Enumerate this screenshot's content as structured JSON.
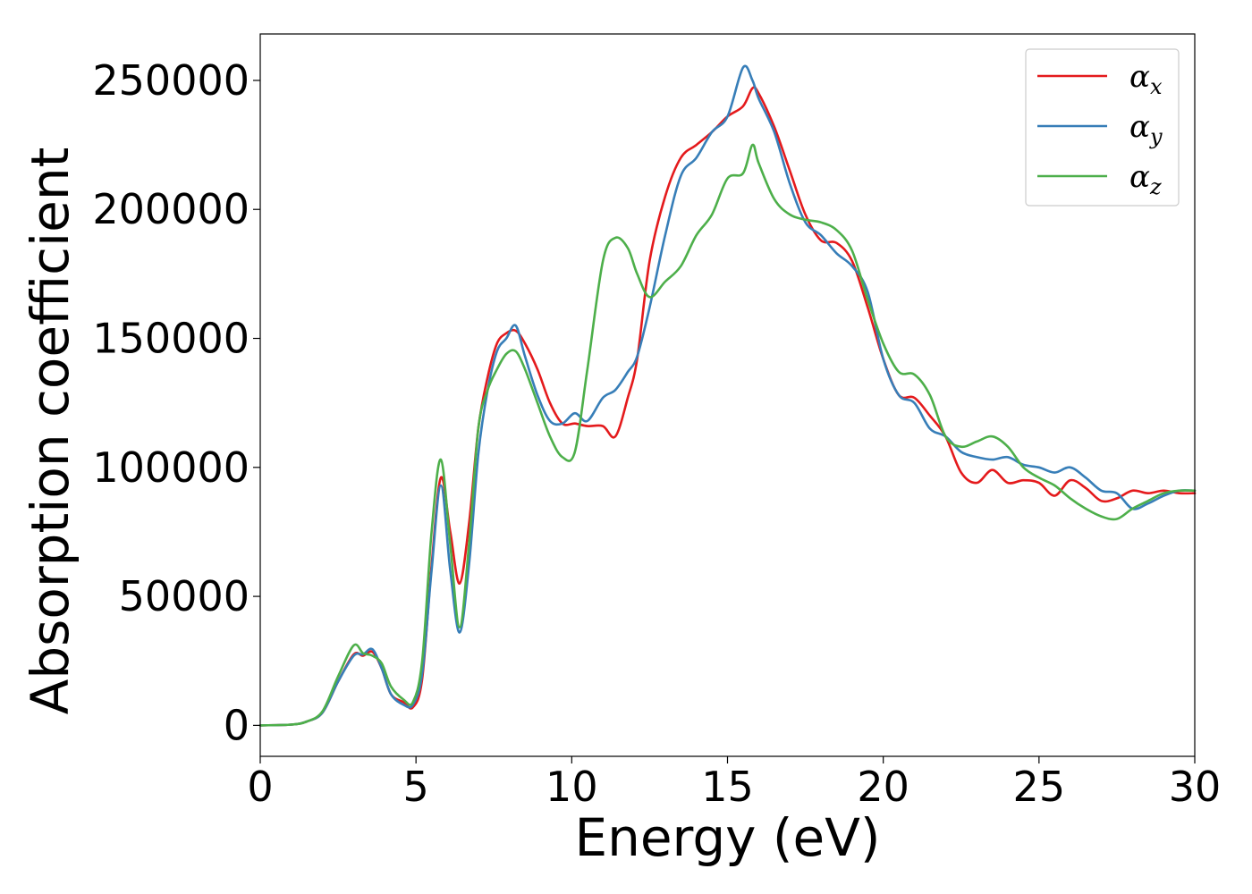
{
  "chart_data": {
    "type": "line",
    "title": "",
    "xlabel": "Energy (eV)",
    "ylabel": "Absorption coefficient",
    "xlim": [
      0,
      30
    ],
    "ylim": [
      -12000,
      268000
    ],
    "xticks": [
      0,
      5,
      10,
      15,
      20,
      25,
      30
    ],
    "yticks": [
      0,
      50000,
      100000,
      150000,
      200000,
      250000
    ],
    "grid": false,
    "legend_position": "top-right",
    "series": [
      {
        "name": "α_x",
        "label_base": "α",
        "label_sub": "x",
        "color": "#e41a1c",
        "x": [
          0,
          1,
          1.5,
          2,
          2.5,
          3,
          3.3,
          3.6,
          3.9,
          4.2,
          4.6,
          4.9,
          5.2,
          5.5,
          5.8,
          6.1,
          6.4,
          6.7,
          7.0,
          7.3,
          7.6,
          7.9,
          8.2,
          8.5,
          8.9,
          9.3,
          9.7,
          10.1,
          10.5,
          11.0,
          11.4,
          11.8,
          12.1,
          12.5,
          13.0,
          13.5,
          14.0,
          14.5,
          15.0,
          15.5,
          15.8,
          16.0,
          16.5,
          17.0,
          17.5,
          18.0,
          18.5,
          19.0,
          19.5,
          20.0,
          20.5,
          21.0,
          21.5,
          22.0,
          22.5,
          23.0,
          23.5,
          24.0,
          24.5,
          25.0,
          25.5,
          26.0,
          26.5,
          27.0,
          27.5,
          28.0,
          28.5,
          29.0,
          29.5,
          30.0
        ],
        "y": [
          0,
          300,
          1500,
          5000,
          17000,
          27500,
          27000,
          28500,
          22000,
          12000,
          9000,
          7000,
          18000,
          62000,
          96000,
          75000,
          55000,
          78000,
          115000,
          135000,
          148000,
          152000,
          153000,
          148000,
          138000,
          125000,
          117000,
          117000,
          116000,
          116000,
          112000,
          127000,
          142000,
          180000,
          205000,
          220000,
          225000,
          230000,
          236000,
          240000,
          247000,
          245000,
          232000,
          215000,
          198000,
          188000,
          187000,
          180000,
          162000,
          142000,
          128000,
          127000,
          120000,
          112000,
          98000,
          94000,
          99000,
          94000,
          95000,
          94000,
          89000,
          95000,
          92000,
          87000,
          88000,
          91000,
          90000,
          91000,
          90000,
          90000
        ]
      },
      {
        "name": "α_y",
        "label_base": "α",
        "label_sub": "y",
        "color": "#377eb8",
        "x": [
          0,
          1,
          1.5,
          2,
          2.5,
          3,
          3.3,
          3.6,
          3.9,
          4.2,
          4.6,
          4.9,
          5.2,
          5.5,
          5.8,
          6.1,
          6.4,
          6.7,
          7.0,
          7.3,
          7.6,
          7.9,
          8.2,
          8.5,
          8.9,
          9.3,
          9.7,
          10.1,
          10.5,
          11.0,
          11.4,
          11.8,
          12.1,
          12.5,
          13.0,
          13.5,
          14.0,
          14.5,
          15.0,
          15.5,
          15.8,
          16.0,
          16.5,
          17.0,
          17.5,
          18.0,
          18.5,
          19.0,
          19.5,
          20.0,
          20.5,
          21.0,
          21.5,
          22.0,
          22.5,
          23.0,
          23.5,
          24.0,
          24.5,
          25.0,
          25.5,
          26.0,
          26.5,
          27.0,
          27.5,
          28.0,
          28.5,
          29.0,
          29.5,
          30.0
        ],
        "y": [
          0,
          300,
          1500,
          5000,
          17000,
          27000,
          27500,
          29500,
          22000,
          12000,
          8000,
          8000,
          20000,
          60000,
          93000,
          60000,
          36000,
          62000,
          105000,
          130000,
          145000,
          150000,
          155000,
          143000,
          128000,
          118000,
          117000,
          121000,
          118000,
          127000,
          130000,
          137000,
          143000,
          162000,
          190000,
          213000,
          220000,
          230000,
          236000,
          255000,
          250000,
          243000,
          230000,
          210000,
          195000,
          190000,
          183000,
          178000,
          168000,
          142000,
          128000,
          125000,
          115000,
          112000,
          106000,
          104000,
          103000,
          104000,
          101000,
          100000,
          98000,
          100000,
          96000,
          91000,
          90000,
          84000,
          86000,
          89000,
          91000,
          91000
        ]
      },
      {
        "name": "α_z",
        "label_base": "α",
        "label_sub": "z",
        "color": "#4daf4a",
        "x": [
          0,
          1,
          1.5,
          2,
          2.5,
          3,
          3.3,
          3.6,
          3.9,
          4.2,
          4.6,
          4.9,
          5.2,
          5.5,
          5.8,
          6.1,
          6.4,
          6.7,
          7.0,
          7.3,
          7.6,
          7.9,
          8.2,
          8.5,
          8.9,
          9.3,
          9.7,
          10.1,
          10.5,
          11.0,
          11.4,
          11.8,
          12.1,
          12.5,
          13.0,
          13.5,
          14.0,
          14.5,
          15.0,
          15.5,
          15.8,
          16.0,
          16.5,
          17.0,
          17.5,
          18.0,
          18.5,
          19.0,
          19.5,
          20.0,
          20.5,
          21.0,
          21.5,
          22.0,
          22.5,
          23.0,
          23.5,
          24.0,
          24.5,
          25.0,
          25.5,
          26.0,
          26.5,
          27.0,
          27.5,
          28.0,
          28.5,
          29.0,
          29.5,
          30.0
        ],
        "y": [
          0,
          300,
          1500,
          5500,
          19000,
          31000,
          28000,
          27000,
          24000,
          15000,
          10000,
          9000,
          25000,
          75000,
          103000,
          70000,
          38000,
          70000,
          115000,
          130000,
          138000,
          144000,
          145000,
          138000,
          125000,
          112000,
          104000,
          106000,
          138000,
          180000,
          189000,
          185000,
          175000,
          166000,
          172000,
          178000,
          190000,
          198000,
          212000,
          214000,
          225000,
          218000,
          204000,
          198000,
          196000,
          195000,
          192000,
          184000,
          165000,
          148000,
          137000,
          136000,
          128000,
          112000,
          108000,
          110000,
          112000,
          108000,
          100000,
          96000,
          93000,
          88000,
          84000,
          81000,
          80000,
          84000,
          87000,
          90000,
          91000,
          91000
        ]
      }
    ]
  }
}
